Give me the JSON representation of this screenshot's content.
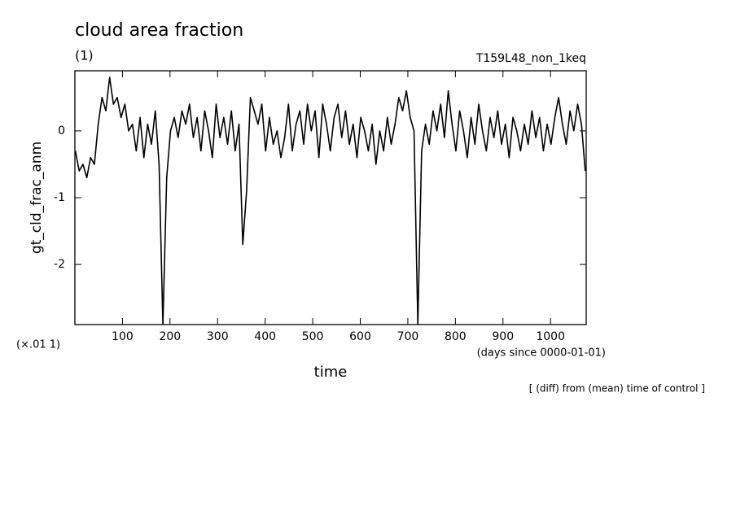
{
  "chart_data": {
    "type": "line",
    "title": "cloud area fraction",
    "subtitle": "(1)",
    "experiment": "T159L48_non_1keq",
    "y_label": "gt_cld_frac_anm",
    "y_scale_note": "(×.01 1)",
    "x_label": "time",
    "x_units": "(days since 0000-01-01)",
    "footnote": "[ (diff) from (mean) time of control ]",
    "color": "#000000",
    "xlim": [
      0,
      1075
    ],
    "ylim": [
      -2.9,
      0.9
    ],
    "xticks": [
      100,
      200,
      300,
      400,
      500,
      600,
      700,
      800,
      900,
      1000
    ],
    "yticks": [
      -2,
      -1,
      0
    ],
    "x": [
      1,
      9,
      17,
      25,
      33,
      41,
      49,
      57,
      65,
      73,
      81,
      89,
      97,
      105,
      113,
      121,
      129,
      137,
      145,
      153,
      161,
      169,
      177,
      185,
      193,
      201,
      209,
      217,
      225,
      233,
      241,
      249,
      257,
      265,
      273,
      281,
      289,
      297,
      305,
      313,
      321,
      329,
      337,
      345,
      353,
      361,
      369,
      377,
      385,
      393,
      401,
      409,
      417,
      425,
      433,
      441,
      449,
      457,
      465,
      473,
      481,
      489,
      497,
      505,
      513,
      521,
      529,
      537,
      545,
      553,
      561,
      569,
      577,
      585,
      593,
      601,
      609,
      617,
      625,
      633,
      641,
      649,
      657,
      665,
      673,
      681,
      689,
      697,
      705,
      713,
      721,
      729,
      737,
      745,
      753,
      761,
      769,
      777,
      785,
      793,
      801,
      809,
      817,
      825,
      833,
      841,
      849,
      857,
      865,
      873,
      881,
      889,
      897,
      905,
      913,
      921,
      929,
      937,
      945,
      953,
      961,
      969,
      977,
      985,
      993,
      1001,
      1009,
      1017,
      1025,
      1033,
      1041,
      1049,
      1057,
      1065,
      1073
    ],
    "values": [
      -0.3,
      -0.6,
      -0.5,
      -0.7,
      -0.4,
      -0.5,
      0.1,
      0.5,
      0.3,
      0.8,
      0.4,
      0.5,
      0.2,
      0.4,
      0.0,
      0.1,
      -0.3,
      0.2,
      -0.4,
      0.1,
      -0.2,
      0.3,
      -0.5,
      -2.9,
      -0.7,
      0.0,
      0.2,
      -0.1,
      0.3,
      0.1,
      0.4,
      -0.1,
      0.2,
      -0.3,
      0.3,
      0.0,
      -0.4,
      0.4,
      -0.1,
      0.2,
      -0.2,
      0.3,
      -0.3,
      0.1,
      -1.7,
      -0.9,
      0.5,
      0.3,
      0.1,
      0.4,
      -0.3,
      0.2,
      -0.2,
      0.0,
      -0.4,
      -0.1,
      0.4,
      -0.3,
      0.1,
      0.3,
      -0.2,
      0.4,
      0.0,
      0.3,
      -0.4,
      0.4,
      0.1,
      -0.3,
      0.2,
      0.4,
      -0.1,
      0.3,
      -0.2,
      0.1,
      -0.4,
      0.2,
      0.0,
      -0.3,
      0.1,
      -0.5,
      0.0,
      -0.3,
      0.2,
      -0.2,
      0.1,
      0.5,
      0.3,
      0.6,
      0.2,
      0.0,
      -2.9,
      -0.3,
      0.1,
      -0.2,
      0.3,
      0.0,
      0.4,
      -0.1,
      0.6,
      0.1,
      -0.3,
      0.3,
      0.0,
      -0.4,
      0.2,
      -0.2,
      0.4,
      0.0,
      -0.3,
      0.2,
      -0.1,
      0.3,
      -0.2,
      0.1,
      -0.4,
      0.2,
      0.0,
      -0.3,
      0.1,
      -0.2,
      0.3,
      -0.1,
      0.2,
      -0.3,
      0.1,
      -0.2,
      0.2,
      0.5,
      0.1,
      -0.2,
      0.3,
      0.0,
      0.4,
      0.1,
      -0.6
    ]
  }
}
